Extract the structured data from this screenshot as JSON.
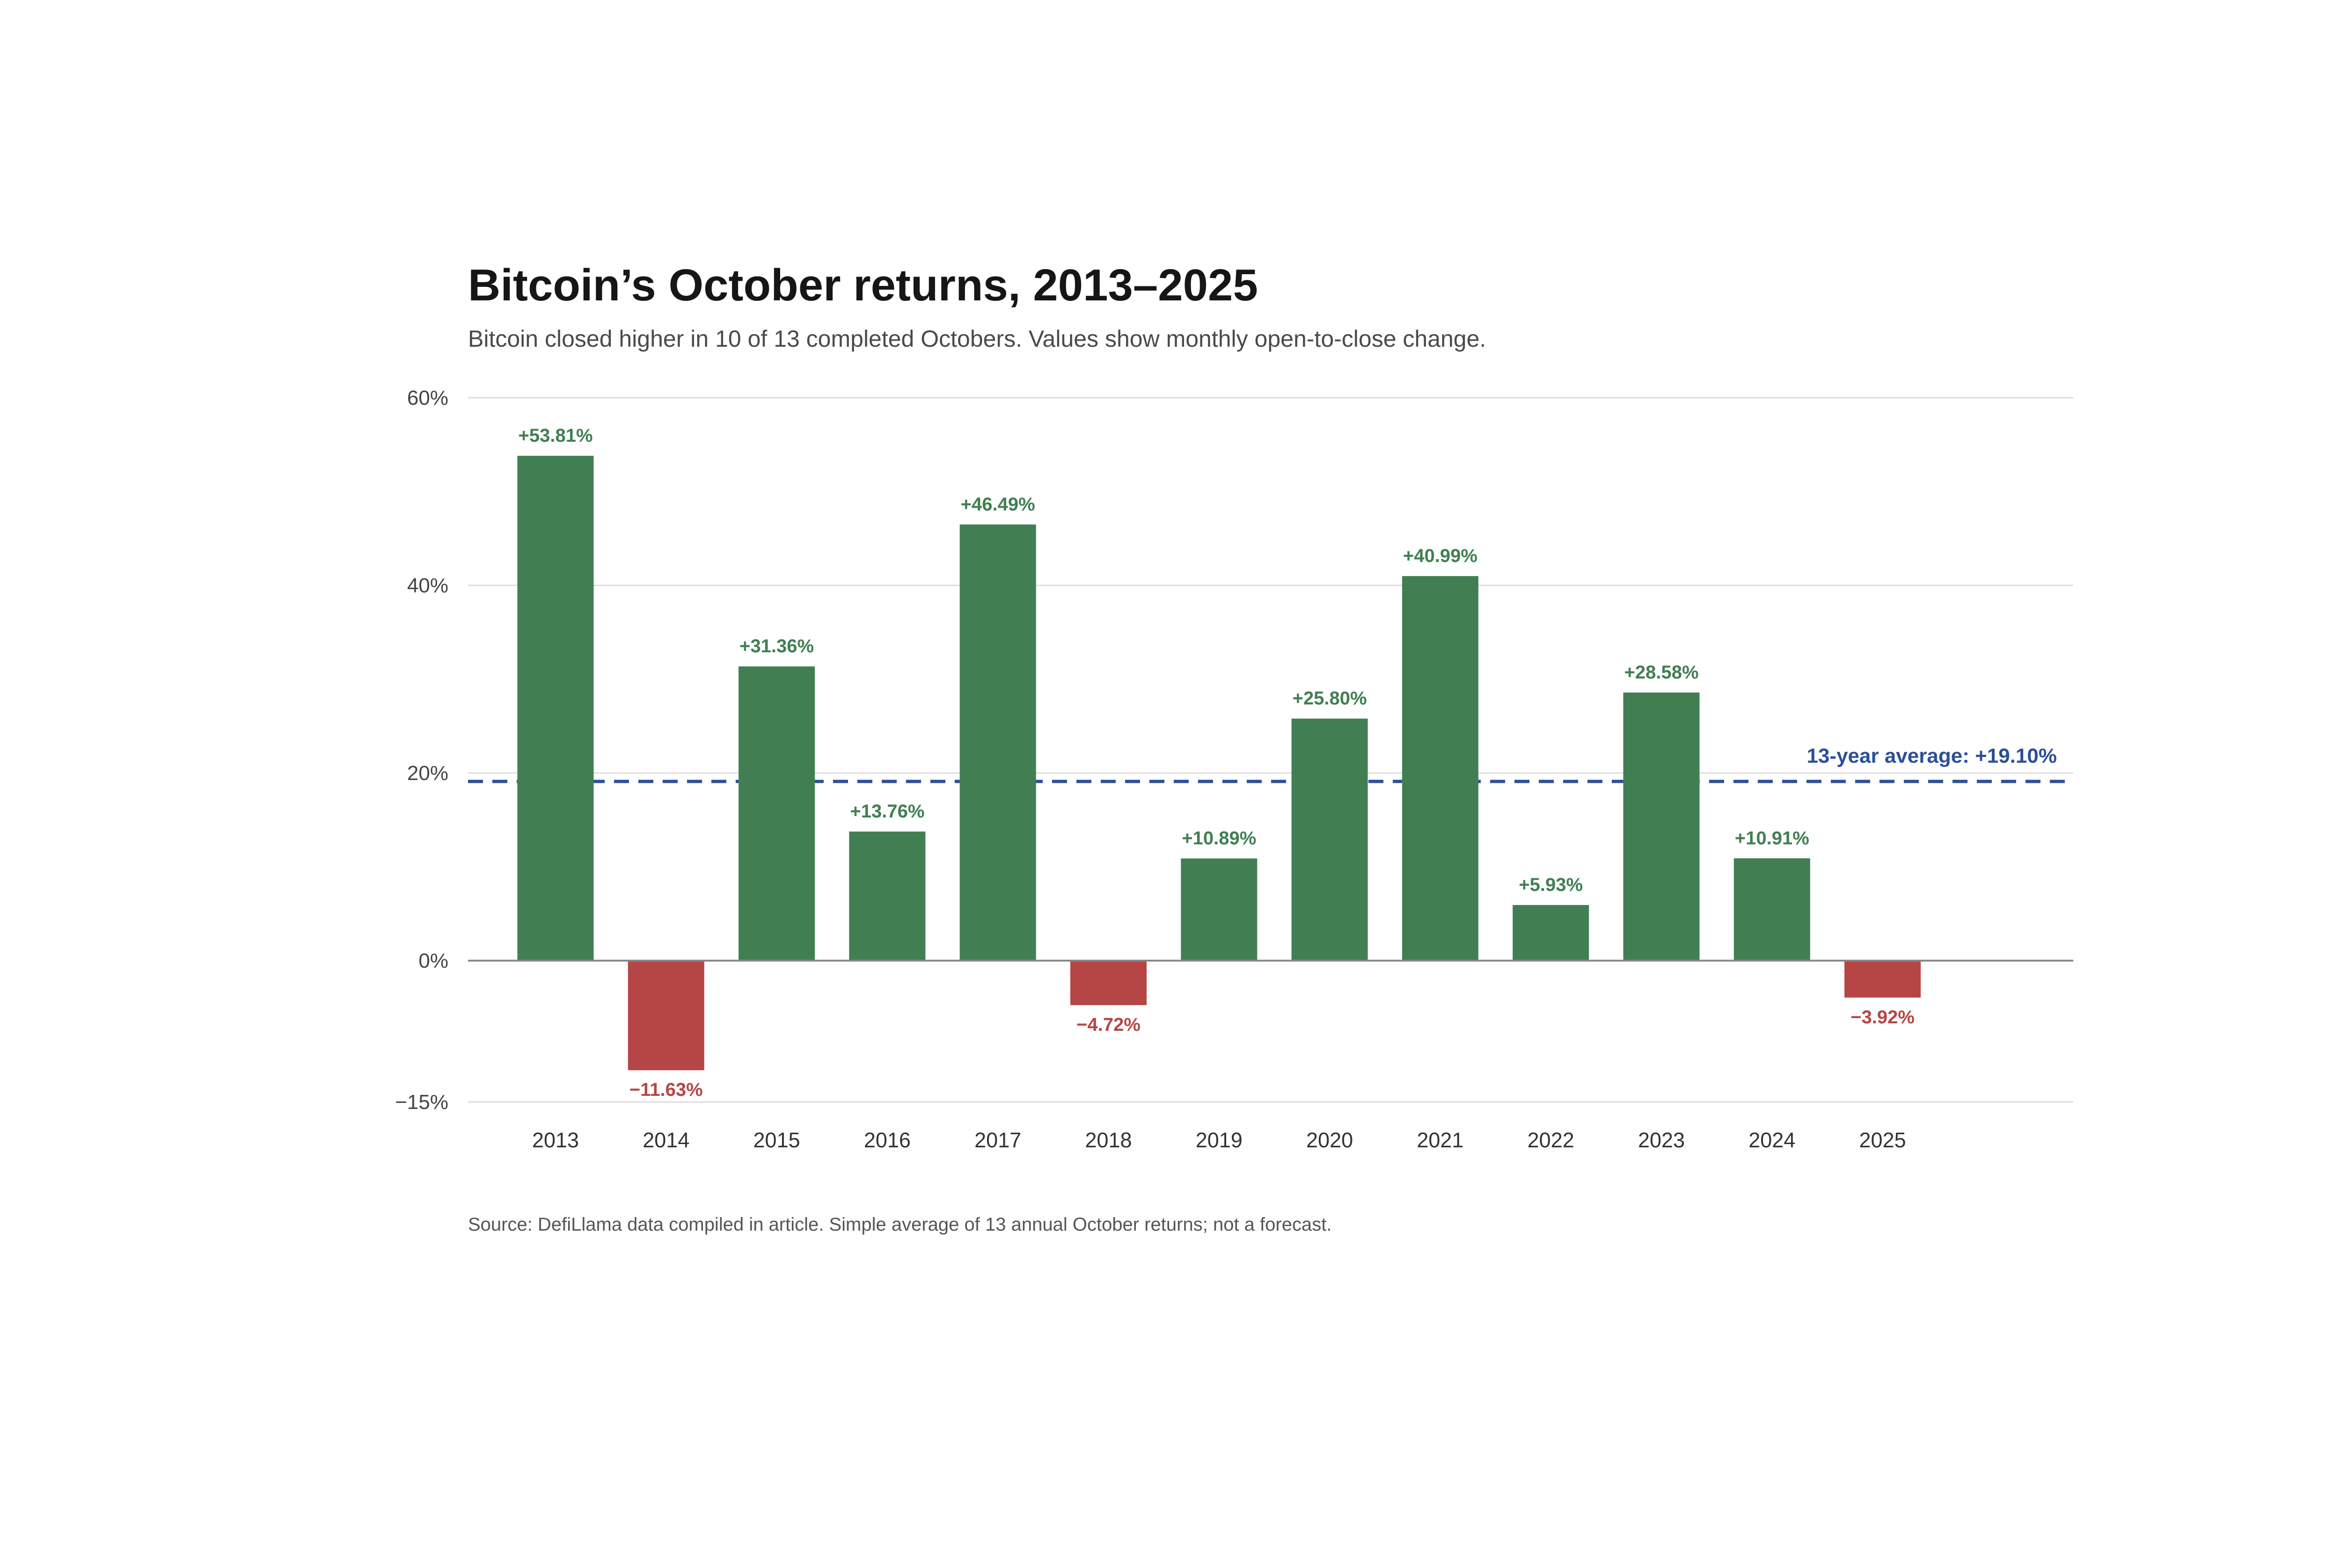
{
  "chart_data": {
    "type": "bar",
    "title": "Bitcoin’s October returns, 2013–2025",
    "subtitle": "Bitcoin closed higher in 10 of 13 completed Octobers. Values show monthly open-to-close change.",
    "source": "Source: DefiLlama data compiled in article. Simple average of 13 annual October returns; not a forecast.",
    "categories": [
      "2013",
      "2014",
      "2015",
      "2016",
      "2017",
      "2018",
      "2019",
      "2020",
      "2021",
      "2022",
      "2023",
      "2024",
      "2025"
    ],
    "values": [
      53.81,
      -11.63,
      31.36,
      13.76,
      46.49,
      -4.72,
      10.89,
      25.8,
      40.99,
      5.93,
      28.58,
      10.91,
      -3.92
    ],
    "data_labels": [
      "+53.81%",
      "−11.63%",
      "+31.36%",
      "+13.76%",
      "+46.49%",
      "−4.72%",
      "+10.89%",
      "+25.80%",
      "+40.99%",
      "+5.93%",
      "+28.58%",
      "+10.91%",
      "−3.92%"
    ],
    "yticks": [
      60,
      40,
      20,
      0,
      -15
    ],
    "ytick_labels": [
      "60%",
      "40%",
      "20%",
      "0%",
      "−15%"
    ],
    "ylim": [
      -15,
      60
    ],
    "average": {
      "value": 19.1,
      "label": "13-year average: +19.10%"
    },
    "grid": true,
    "xlabel": "",
    "ylabel": "",
    "colors": {
      "positive": "#417f52",
      "negative": "#b54645",
      "average": "#2c4f98",
      "grid": "#dddddd",
      "baseline": "#888888"
    }
  }
}
